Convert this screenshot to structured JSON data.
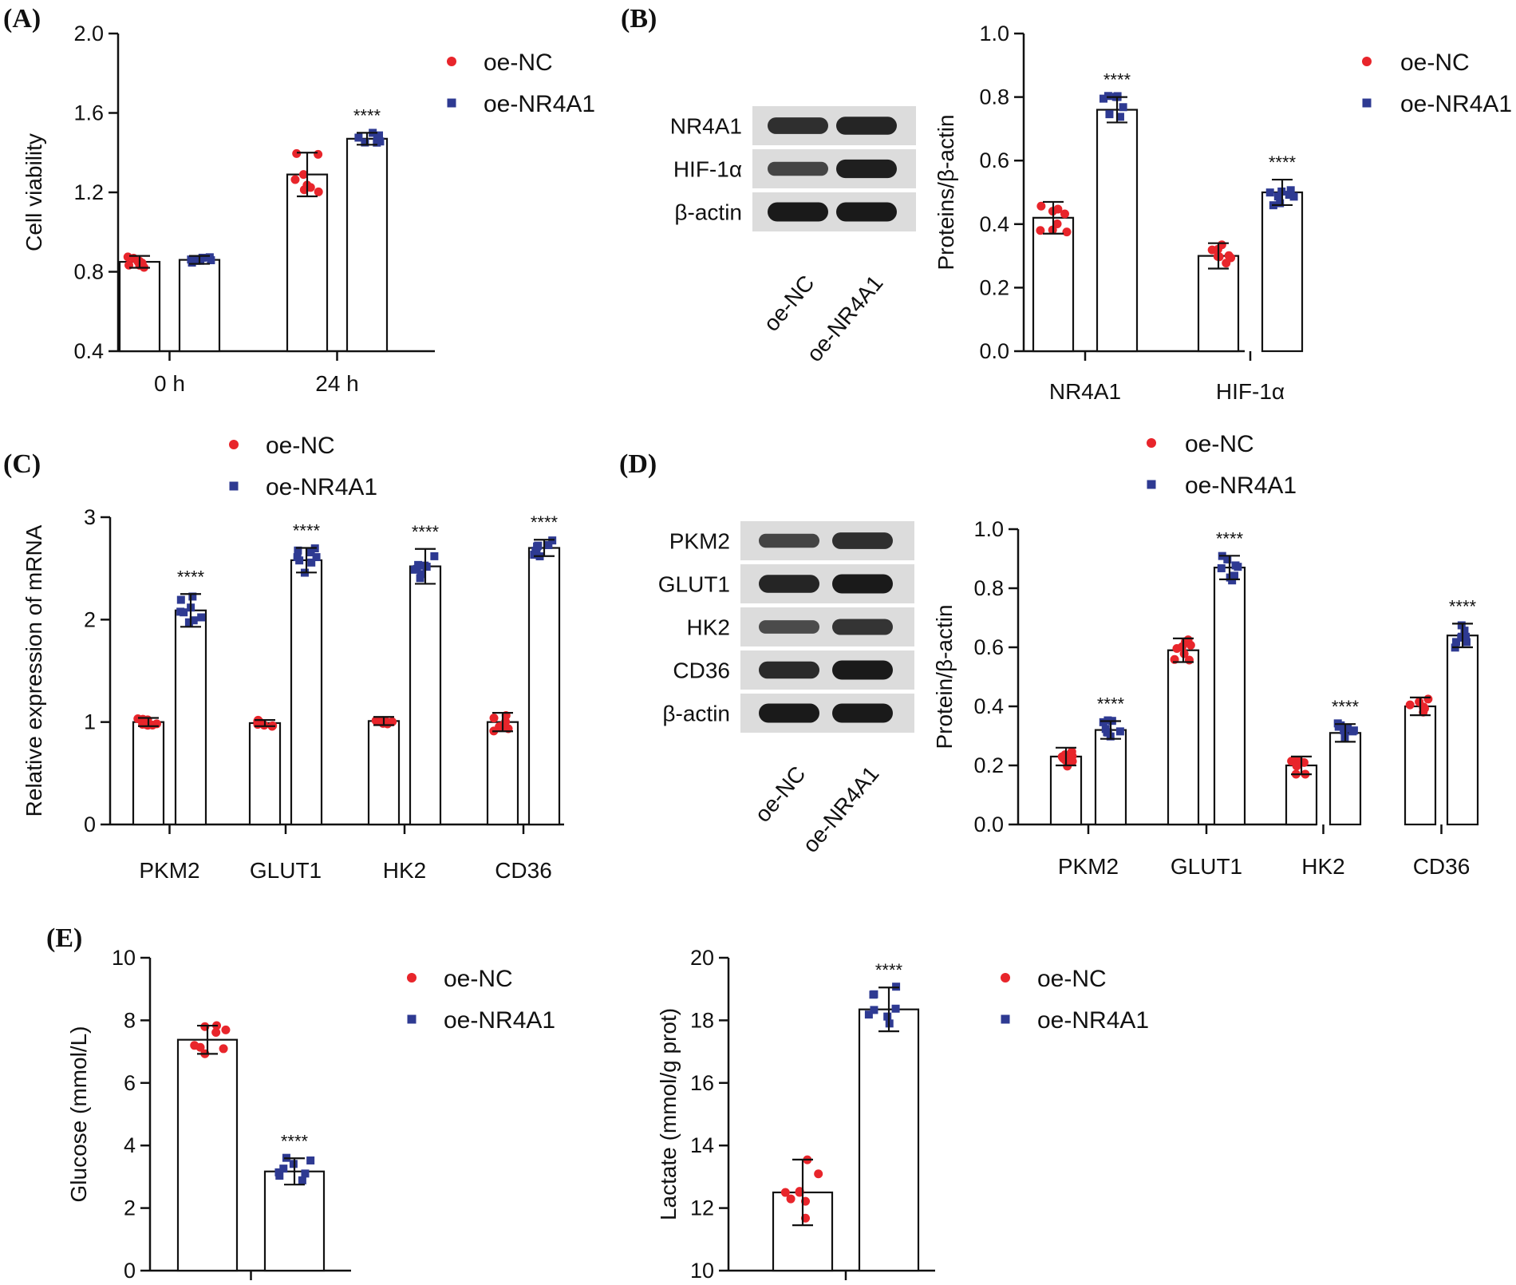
{
  "colors": {
    "nc": "#e8252b",
    "nr": "#2e3a92",
    "axis": "#111111",
    "blot_bg": "#dcdcdc",
    "band": "#1a1a1a"
  },
  "chart_data": [
    {
      "panel": "(A)",
      "type": "bar",
      "ylabel": "Cell viability",
      "categories": [
        "0 h",
        "24 h"
      ],
      "ylim": [
        0.4,
        2.0
      ],
      "yticks": [
        "0.4",
        "0.8",
        "1.2",
        "1.6",
        "2.0"
      ],
      "series": [
        {
          "name": "oe-NC",
          "values": [
            0.85,
            1.29
          ],
          "err": [
            0.03,
            0.11
          ]
        },
        {
          "name": "oe-NR4A1",
          "values": [
            0.86,
            1.47
          ],
          "err": [
            0.02,
            0.03
          ]
        }
      ],
      "significance": [
        "",
        "****"
      ]
    },
    {
      "panel": "(B)",
      "type": "bar",
      "ylabel": "Proteins/β-actin",
      "categories": [
        "NR4A1",
        "HIF-1α"
      ],
      "ylim": [
        0.0,
        1.0
      ],
      "yticks": [
        "0.0",
        "0.2",
        "0.4",
        "0.6",
        "0.8",
        "1.0"
      ],
      "series": [
        {
          "name": "oe-NC",
          "values": [
            0.42,
            0.3
          ],
          "err": [
            0.05,
            0.04
          ]
        },
        {
          "name": "oe-NR4A1",
          "values": [
            0.76,
            0.5
          ],
          "err": [
            0.04,
            0.04
          ]
        }
      ],
      "significance": [
        "****",
        "****"
      ]
    },
    {
      "panel": "(C)",
      "type": "bar",
      "ylabel": "Relative expression of mRNA",
      "categories": [
        "PKM2",
        "GLUT1",
        "HK2",
        "CD36"
      ],
      "ylim": [
        0,
        3
      ],
      "yticks": [
        "0",
        "1",
        "2",
        "3"
      ],
      "series": [
        {
          "name": "oe-NC",
          "values": [
            1.0,
            0.99,
            1.01,
            1.0
          ],
          "err": [
            0.04,
            0.03,
            0.04,
            0.09
          ]
        },
        {
          "name": "oe-NR4A1",
          "values": [
            2.09,
            2.58,
            2.52,
            2.7
          ],
          "err": [
            0.16,
            0.12,
            0.17,
            0.08
          ]
        }
      ],
      "significance": [
        "****",
        "****",
        "****",
        "****"
      ]
    },
    {
      "panel": "(D)",
      "type": "bar",
      "ylabel": "Protein/β-actin",
      "categories": [
        "PKM2",
        "GLUT1",
        "HK2",
        "CD36"
      ],
      "ylim": [
        0.0,
        1.0
      ],
      "yticks": [
        "0.0",
        "0.2",
        "0.4",
        "0.6",
        "0.8",
        "1.0"
      ],
      "series": [
        {
          "name": "oe-NC",
          "values": [
            0.23,
            0.59,
            0.2,
            0.4
          ],
          "err": [
            0.03,
            0.04,
            0.03,
            0.03
          ]
        },
        {
          "name": "oe-NR4A1",
          "values": [
            0.32,
            0.87,
            0.31,
            0.64
          ],
          "err": [
            0.03,
            0.04,
            0.03,
            0.04
          ]
        }
      ],
      "significance": [
        "****",
        "****",
        "****",
        "****"
      ]
    },
    {
      "panel": "(E)",
      "type": "bar",
      "ylabel": "Glucose (mmol/L)",
      "categories": [
        ""
      ],
      "ylim": [
        0,
        10
      ],
      "yticks": [
        "0",
        "2",
        "4",
        "6",
        "8",
        "10"
      ],
      "series": [
        {
          "name": "oe-NC",
          "values": [
            7.38
          ],
          "err": [
            0.45
          ]
        },
        {
          "name": "oe-NR4A1",
          "values": [
            3.17
          ],
          "err": [
            0.42
          ]
        }
      ],
      "significance": [
        "****"
      ]
    },
    {
      "panel": "",
      "type": "bar",
      "ylabel": "Lactate (mmol/g prot)",
      "categories": [
        ""
      ],
      "ylim": [
        10,
        20
      ],
      "yticks": [
        "10",
        "12",
        "14",
        "16",
        "18",
        "20"
      ],
      "series": [
        {
          "name": "oe-NC",
          "values": [
            12.5
          ],
          "err": [
            1.05
          ]
        },
        {
          "name": "oe-NR4A1",
          "values": [
            18.35
          ],
          "err": [
            0.7
          ]
        }
      ],
      "significance": [
        "****"
      ]
    }
  ],
  "blots": [
    {
      "panel": "(B)",
      "rows": [
        "NR4A1",
        "HIF-1α",
        "β-actin"
      ],
      "lanes": [
        "oe-NC",
        "oe-NR4A1"
      ],
      "intensity": [
        [
          0.8,
          0.9
        ],
        [
          0.6,
          0.95
        ],
        [
          1.0,
          1.0
        ]
      ]
    },
    {
      "panel": "(D)",
      "rows": [
        "PKM2",
        "GLUT1",
        "HK2",
        "CD36",
        "β-actin"
      ],
      "lanes": [
        "oe-NC",
        "oe-NR4A1"
      ],
      "intensity": [
        [
          0.6,
          0.8
        ],
        [
          0.9,
          1.0
        ],
        [
          0.55,
          0.75
        ],
        [
          0.85,
          1.0
        ],
        [
          1.0,
          1.0
        ]
      ]
    }
  ]
}
